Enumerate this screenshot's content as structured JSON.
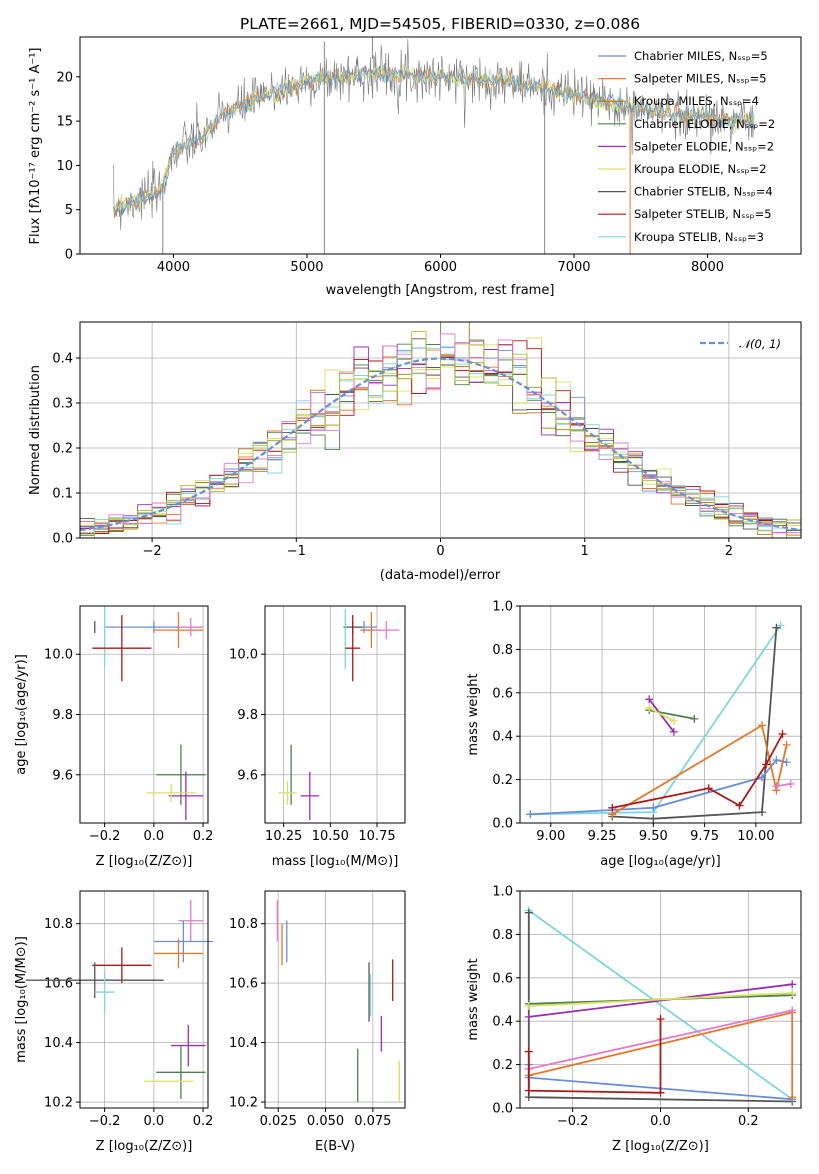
{
  "colors": {
    "Chabrier MILES": "#6a8fd6",
    "Salpeter MILES": "#e2782b",
    "Kroupa MILES": "#b07a10",
    "Chabrier ELODIE": "#4f7f4f",
    "Salpeter ELODIE": "#9a2fb0",
    "Kroupa ELODIE": "#d8e060",
    "Chabrier STELIB": "#555555",
    "Salpeter STELIB": "#aa1818",
    "Kroupa STELIB": "#80d4dc",
    "extra_pink": "#e37ac8",
    "extra_olive": "#a8c23a",
    "normal_curve": "#6a8fd6"
  },
  "chart_data": [
    {
      "id": "spectrum",
      "type": "line",
      "title": "PLATE=2661, MJD=54505, FIBERID=0330, z=0.086",
      "xlabel": "wavelength [Angstrom, rest frame]",
      "ylabel": "Flux [fλ10⁻¹⁷ erg cm⁻² s⁻¹ A⁻¹]",
      "xlim": [
        3300,
        8700
      ],
      "ylim": [
        0,
        24.5
      ],
      "xticks": [
        "4000",
        "5000",
        "6000",
        "7000",
        "8000"
      ],
      "yticks": [
        "0",
        "5",
        "10",
        "15",
        "20"
      ],
      "continuum": [
        [
          3550,
          5.0
        ],
        [
          3700,
          6.0
        ],
        [
          3900,
          7.0
        ],
        [
          4000,
          11.5
        ],
        [
          4200,
          13.0
        ],
        [
          4400,
          16.0
        ],
        [
          4700,
          18.0
        ],
        [
          5000,
          19.5
        ],
        [
          5500,
          20.5
        ],
        [
          6000,
          20.0
        ],
        [
          6500,
          19.5
        ],
        [
          7000,
          18.0
        ],
        [
          7400,
          16.5
        ],
        [
          7900,
          15.5
        ],
        [
          8350,
          15.0
        ]
      ],
      "legend": [
        {
          "label": "Chabrier MILES, Nₛₛₚ=5",
          "color_key": "Chabrier MILES"
        },
        {
          "label": "Salpeter MILES, Nₛₛₚ=5",
          "color_key": "Salpeter MILES"
        },
        {
          "label": "Kroupa MILES, Nₛₛₚ=4",
          "color_key": "Kroupa MILES"
        },
        {
          "label": "Chabrier ELODIE, Nₛₛₚ=2",
          "color_key": "Chabrier ELODIE"
        },
        {
          "label": "Salpeter ELODIE, Nₛₛₚ=2",
          "color_key": "Salpeter ELODIE"
        },
        {
          "label": "Kroupa ELODIE, Nₛₛₚ=2",
          "color_key": "Kroupa ELODIE"
        },
        {
          "label": "Chabrier STELIB, Nₛₛₚ=4",
          "color_key": "Chabrier STELIB"
        },
        {
          "label": "Salpeter STELIB, Nₛₛₚ=5",
          "color_key": "Salpeter STELIB"
        },
        {
          "label": "Kroupa STELIB, Nₛₛₚ=3",
          "color_key": "Kroupa STELIB"
        }
      ]
    },
    {
      "id": "residuals",
      "type": "histogram",
      "xlabel": "(data-model)/error",
      "ylabel": "Normed distribution",
      "xlim": [
        -2.5,
        2.5
      ],
      "ylim": [
        0,
        0.48
      ],
      "xticks": [
        "−2",
        "−1",
        "0",
        "1",
        "2"
      ],
      "yticks": [
        "0.0",
        "0.1",
        "0.2",
        "0.3",
        "0.4"
      ],
      "grid": true,
      "legend": [
        {
          "label": "𝒩(0, 1)",
          "color_key": "normal_curve"
        }
      ],
      "bin_width": 0.1
    },
    {
      "id": "age_vs_Z",
      "type": "errorbar",
      "xlabel": "Z [log₁₀(Z/Z⊙)]",
      "ylabel": "age  [log₁₀(age/yr)]",
      "xlim": [
        -0.3,
        0.22
      ],
      "ylim": [
        9.44,
        10.16
      ],
      "xticks": [
        "−0.2",
        "0.0",
        "0.2"
      ],
      "yticks": [
        "9.6",
        "9.8",
        "10.0"
      ],
      "points": [
        {
          "color_key": "Chabrier MILES",
          "x": 0.0,
          "xerr": 0.2,
          "y": 10.09,
          "yerr": 0.02
        },
        {
          "color_key": "Salpeter MILES",
          "x": 0.1,
          "xerr": 0.1,
          "y": 10.08,
          "yerr": 0.06
        },
        {
          "color_key": "extra_pink",
          "x": 0.15,
          "xerr": 0.05,
          "y": 10.09,
          "yerr": 0.03
        },
        {
          "color_key": "Chabrier STELIB",
          "x": -0.24,
          "xerr": 0.0,
          "y": 10.09,
          "yerr": 0.02
        },
        {
          "color_key": "Kroupa STELIB",
          "x": -0.2,
          "xerr": 0.0,
          "y": 10.06,
          "yerr": 0.1
        },
        {
          "color_key": "Salpeter STELIB",
          "x": -0.13,
          "xerr": 0.12,
          "y": 10.02,
          "yerr": 0.11
        },
        {
          "color_key": "Chabrier ELODIE",
          "x": 0.11,
          "xerr": 0.1,
          "y": 9.6,
          "yerr": 0.1
        },
        {
          "color_key": "Salpeter ELODIE",
          "x": 0.13,
          "xerr": 0.07,
          "y": 9.53,
          "yerr": 0.08
        },
        {
          "color_key": "Kroupa ELODIE",
          "x": 0.07,
          "xerr": 0.1,
          "y": 9.54,
          "yerr": 0.03
        }
      ]
    },
    {
      "id": "age_vs_mass",
      "type": "errorbar",
      "xlabel": "mass [log₁₀(M/M⊙)]",
      "ylabel": "",
      "xlim": [
        10.15,
        10.9
      ],
      "ylim": [
        9.44,
        10.16
      ],
      "xticks": [
        "10.25",
        "10.50",
        "10.75"
      ],
      "yticks": [
        "9.6",
        "9.8",
        "10.0"
      ],
      "points": [
        {
          "color_key": "Chabrier MILES",
          "x": 10.68,
          "xerr": 0.07,
          "y": 10.09,
          "yerr": 0.02
        },
        {
          "color_key": "Salpeter MILES",
          "x": 10.72,
          "xerr": 0.06,
          "y": 10.08,
          "yerr": 0.06
        },
        {
          "color_key": "extra_pink",
          "x": 10.8,
          "xerr": 0.07,
          "y": 10.08,
          "yerr": 0.03
        },
        {
          "color_key": "Chabrier STELIB",
          "x": 10.62,
          "xerr": 0.05,
          "y": 10.09,
          "yerr": 0.02
        },
        {
          "color_key": "Kroupa STELIB",
          "x": 10.58,
          "xerr": 0.0,
          "y": 10.05,
          "yerr": 0.1
        },
        {
          "color_key": "Salpeter STELIB",
          "x": 10.62,
          "xerr": 0.04,
          "y": 10.02,
          "yerr": 0.11
        },
        {
          "color_key": "Chabrier ELODIE",
          "x": 10.29,
          "xerr": 0.0,
          "y": 9.6,
          "yerr": 0.1
        },
        {
          "color_key": "Salpeter ELODIE",
          "x": 10.39,
          "xerr": 0.05,
          "y": 9.53,
          "yerr": 0.08
        },
        {
          "color_key": "Kroupa ELODIE",
          "x": 10.27,
          "xerr": 0.05,
          "y": 9.54,
          "yerr": 0.04
        }
      ]
    },
    {
      "id": "massweight_vs_age",
      "type": "line",
      "xlabel": "age  [log₁₀(age/yr)]",
      "ylabel": "mass weight",
      "xlim": [
        8.85,
        10.22
      ],
      "ylim": [
        0,
        1.0
      ],
      "xticks": [
        "9.00",
        "9.25",
        "9.50",
        "9.75",
        "10.00"
      ],
      "yticks": [
        "0.0",
        "0.2",
        "0.4",
        "0.6",
        "0.8",
        "1.0"
      ],
      "grid": true,
      "series": [
        {
          "color_key": "Kroupa STELIB",
          "x": [
            8.9,
            9.5,
            10.12
          ],
          "y": [
            0.04,
            0.05,
            0.91
          ]
        },
        {
          "color_key": "Chabrier STELIB",
          "x": [
            9.3,
            9.5,
            10.03,
            10.1
          ],
          "y": [
            0.03,
            0.02,
            0.05,
            0.9
          ]
        },
        {
          "color_key": "Chabrier MILES",
          "x": [
            8.9,
            9.5,
            10.03,
            10.1,
            10.15
          ],
          "y": [
            0.04,
            0.07,
            0.21,
            0.29,
            0.28
          ]
        },
        {
          "color_key": "Salpeter MILES",
          "x": [
            9.3,
            10.03,
            10.1,
            10.15
          ],
          "y": [
            0.04,
            0.45,
            0.15,
            0.36
          ]
        },
        {
          "color_key": "Salpeter STELIB",
          "x": [
            9.3,
            9.77,
            9.92,
            10.05,
            10.13
          ],
          "y": [
            0.07,
            0.16,
            0.08,
            0.27,
            0.41
          ]
        },
        {
          "color_key": "extra_pink",
          "x": [
            10.1,
            10.17
          ],
          "y": [
            0.17,
            0.18
          ]
        },
        {
          "color_key": "Salpeter ELODIE",
          "x": [
            9.48,
            9.6
          ],
          "y": [
            0.57,
            0.42
          ]
        },
        {
          "color_key": "Chabrier ELODIE",
          "x": [
            9.48,
            9.7
          ],
          "y": [
            0.52,
            0.48
          ]
        },
        {
          "color_key": "Kroupa ELODIE",
          "x": [
            9.48,
            9.6
          ],
          "y": [
            0.53,
            0.47
          ]
        }
      ]
    },
    {
      "id": "mass_vs_Z",
      "type": "errorbar",
      "xlabel": "Z [log₁₀(Z/Z⊙)]",
      "ylabel": "mass [log₁₀(M/M⊙)]",
      "xlim": [
        -0.3,
        0.22
      ],
      "ylim": [
        10.18,
        10.91
      ],
      "xticks": [
        "−0.2",
        "0.0",
        "0.2"
      ],
      "yticks": [
        "10.2",
        "10.4",
        "10.6",
        "10.8"
      ],
      "points": [
        {
          "color_key": "extra_pink",
          "x": 0.15,
          "xerr": 0.05,
          "y": 10.81,
          "yerr": 0.07
        },
        {
          "color_key": "Chabrier MILES",
          "x": 0.12,
          "xerr": 0.12,
          "y": 10.74,
          "yerr": 0.07
        },
        {
          "color_key": "Salpeter MILES",
          "x": 0.1,
          "xerr": 0.1,
          "y": 10.7,
          "yerr": 0.05
        },
        {
          "color_key": "Salpeter STELIB",
          "x": -0.13,
          "xerr": 0.12,
          "y": 10.66,
          "yerr": 0.06
        },
        {
          "color_key": "Chabrier STELIB",
          "x": -0.24,
          "xerr": 0.28,
          "y": 10.61,
          "yerr": 0.06
        },
        {
          "color_key": "Kroupa STELIB",
          "x": -0.2,
          "xerr": 0.04,
          "y": 10.57,
          "yerr": 0.07
        },
        {
          "color_key": "Salpeter ELODIE",
          "x": 0.14,
          "xerr": 0.07,
          "y": 10.39,
          "yerr": 0.07
        },
        {
          "color_key": "Chabrier ELODIE",
          "x": 0.11,
          "xerr": 0.1,
          "y": 10.3,
          "yerr": 0.09
        },
        {
          "color_key": "Kroupa ELODIE",
          "x": 0.06,
          "xerr": 0.1,
          "y": 10.27,
          "yerr": 0.0
        }
      ]
    },
    {
      "id": "mass_vs_ebv",
      "type": "errorbar",
      "xlabel": "E(B-V)",
      "ylabel": "",
      "xlim": [
        0.018,
        0.092
      ],
      "ylim": [
        10.18,
        10.91
      ],
      "xticks": [
        "0.025",
        "0.050",
        "0.075"
      ],
      "yticks": [
        "10.2",
        "10.4",
        "10.6",
        "10.8"
      ],
      "points": [
        {
          "color_key": "extra_pink",
          "x": 0.0245,
          "xerr": 0,
          "y": 10.81,
          "yerr": 0.07
        },
        {
          "color_key": "Salpeter MILES",
          "x": 0.027,
          "xerr": 0,
          "y": 10.73,
          "yerr": 0.07
        },
        {
          "color_key": "Chabrier MILES",
          "x": 0.0295,
          "xerr": 0,
          "y": 10.74,
          "yerr": 0.07
        },
        {
          "color_key": "Chabrier STELIB",
          "x": 0.073,
          "xerr": 0,
          "y": 10.57,
          "yerr": 0.1
        },
        {
          "color_key": "Kroupa STELIB",
          "x": 0.0738,
          "xerr": 0,
          "y": 10.56,
          "yerr": 0.07
        },
        {
          "color_key": "Salpeter STELIB",
          "x": 0.0855,
          "xerr": 0,
          "y": 10.61,
          "yerr": 0.07
        },
        {
          "color_key": "Salpeter ELODIE",
          "x": 0.0795,
          "xerr": 0,
          "y": 10.43,
          "yerr": 0.06
        },
        {
          "color_key": "Chabrier ELODIE",
          "x": 0.067,
          "xerr": 0,
          "y": 10.29,
          "yerr": 0.09
        },
        {
          "color_key": "Kroupa ELODIE",
          "x": 0.089,
          "xerr": 0,
          "y": 10.27,
          "yerr": 0.07
        }
      ]
    },
    {
      "id": "massweight_vs_Z",
      "type": "line",
      "xlabel": "Z [log₁₀(Z/Z⊙)]",
      "ylabel": "mass weight",
      "xlim": [
        -0.32,
        0.32
      ],
      "ylim": [
        0,
        1.0
      ],
      "xticks": [
        "−0.2",
        "0.0",
        "0.2"
      ],
      "yticks": [
        "0.0",
        "0.2",
        "0.4",
        "0.6",
        "0.8",
        "1.0"
      ],
      "grid": true,
      "series": [
        {
          "color_key": "Kroupa STELIB",
          "x": [
            -0.3,
            0.3
          ],
          "y": [
            0.91,
            0.04
          ]
        },
        {
          "color_key": "Chabrier STELIB",
          "x": [
            -0.3,
            -0.3,
            0.3
          ],
          "y": [
            0.9,
            0.05,
            0.03
          ]
        },
        {
          "color_key": "Chabrier MILES",
          "x": [
            -0.3,
            -0.3,
            0.3
          ],
          "y": [
            0.2,
            0.14,
            0.04
          ]
        },
        {
          "color_key": "Salpeter MILES",
          "x": [
            -0.3,
            0.3,
            0.3
          ],
          "y": [
            0.15,
            0.44,
            0.05
          ]
        },
        {
          "color_key": "extra_pink",
          "x": [
            -0.3,
            0.3
          ],
          "y": [
            0.18,
            0.45
          ]
        },
        {
          "color_key": "Salpeter ELODIE",
          "x": [
            -0.3,
            0.3
          ],
          "y": [
            0.42,
            0.57
          ]
        },
        {
          "color_key": "Chabrier ELODIE",
          "x": [
            -0.3,
            0.3
          ],
          "y": [
            0.48,
            0.52
          ]
        },
        {
          "color_key": "Kroupa ELODIE",
          "x": [
            -0.3,
            0.3
          ],
          "y": [
            0.47,
            0.53
          ]
        },
        {
          "color_key": "Salpeter STELIB",
          "x": [
            -0.3,
            -0.3,
            0.0,
            0.0
          ],
          "y": [
            0.26,
            0.08,
            0.07,
            0.41
          ]
        }
      ]
    }
  ]
}
